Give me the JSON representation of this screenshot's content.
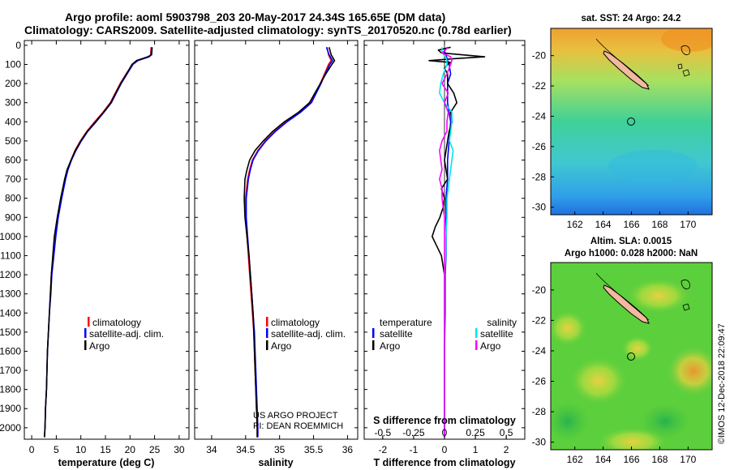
{
  "title": {
    "line1": "Argo profile: aoml 5903798_203 20-May-2017 24.34S 165.65E (DM data)",
    "line2": "Climatology: CARS2009. Satellite-adjusted climatology: synTS_20170520.nc (0.78d earlier)"
  },
  "colors": {
    "climatology": "#ff0000",
    "satellite": "#0000ff",
    "argo": "#000000",
    "sat_salinity": "#00e5ee",
    "argo_salinity": "#ff00ff",
    "land": "#f2b8a0"
  },
  "depth_ticks": [
    "0",
    "100",
    "200",
    "300",
    "400",
    "500",
    "600",
    "700",
    "800",
    "900",
    "1000",
    "1100",
    "1200",
    "1300",
    "1400",
    "1500",
    "1600",
    "1700",
    "1800",
    "1900",
    "2000"
  ],
  "chart_data": [
    {
      "type": "line",
      "panel": "temperature",
      "xlabel": "temperature (deg C)",
      "ylabel": "",
      "xlim": [
        -1.5,
        32
      ],
      "ylim": [
        2060,
        -25
      ],
      "xticks": [
        "0",
        "5",
        "10",
        "15",
        "20",
        "25",
        "30"
      ],
      "legend": {
        "placement": "middle-right",
        "entries": [
          "climatology",
          "satellite-adj. clim.",
          "Argo"
        ]
      },
      "series": [
        {
          "name": "climatology",
          "depth": [
            10,
            50,
            60,
            80,
            100,
            150,
            200,
            250,
            300,
            350,
            400,
            450,
            500,
            550,
            600,
            650,
            700,
            800,
            900,
            1000,
            1100,
            1200,
            1300,
            1400,
            1500,
            1600,
            1700,
            1800,
            1900,
            2000,
            2050
          ],
          "values": [
            24.3,
            24.2,
            23.8,
            21.5,
            20.5,
            19.2,
            18.0,
            17.0,
            16.0,
            14.5,
            12.8,
            11.2,
            9.9,
            8.8,
            8.0,
            7.3,
            6.8,
            6.0,
            5.3,
            4.8,
            4.4,
            4.0,
            3.8,
            3.6,
            3.4,
            3.2,
            3.1,
            3.0,
            2.8,
            2.7,
            2.6
          ]
        },
        {
          "name": "satellite-adj. clim.",
          "depth": [
            10,
            50,
            60,
            80,
            100,
            150,
            200,
            250,
            300,
            350,
            400,
            450,
            500,
            550,
            600,
            650,
            700,
            800,
            900,
            1000,
            1100,
            1200,
            1300,
            1400,
            1500,
            1600,
            1700,
            1800,
            1900,
            2000,
            2050
          ],
          "values": [
            24.4,
            24.3,
            23.9,
            21.6,
            20.6,
            19.4,
            18.2,
            17.2,
            16.2,
            14.7,
            13.1,
            11.4,
            10.1,
            9.0,
            8.1,
            7.4,
            6.9,
            6.1,
            5.4,
            4.9,
            4.5,
            4.1,
            3.9,
            3.6,
            3.4,
            3.2,
            3.1,
            3.0,
            2.8,
            2.7,
            2.6
          ]
        },
        {
          "name": "Argo",
          "depth": [
            10,
            50,
            60,
            80,
            100,
            150,
            200,
            250,
            300,
            350,
            400,
            450,
            500,
            550,
            600,
            650,
            700,
            800,
            900,
            1000,
            1100,
            1200,
            1300,
            1400,
            1500,
            1600,
            1700,
            1800,
            1900,
            2000,
            2050
          ],
          "values": [
            24.5,
            24.4,
            23.6,
            21.3,
            20.4,
            19.3,
            18.1,
            17.1,
            16.1,
            14.6,
            13.0,
            11.3,
            10.0,
            8.9,
            8.0,
            7.2,
            6.7,
            5.9,
            5.2,
            4.6,
            4.3,
            4.0,
            3.8,
            3.6,
            3.4,
            3.2,
            3.1,
            3.0,
            2.8,
            2.7,
            2.6
          ]
        }
      ]
    },
    {
      "type": "line",
      "panel": "salinity",
      "xlabel": "salinity",
      "ylabel": "",
      "xlim": [
        33.75,
        36.15
      ],
      "ylim": [
        2060,
        -25
      ],
      "xticks": [
        "34",
        "34.5",
        "35",
        "35.5",
        "36"
      ],
      "legend": {
        "placement": "lower-right",
        "entries": [
          "climatology",
          "satellite-adj. clim.",
          "Argo"
        ]
      },
      "series": [
        {
          "name": "climatology",
          "depth": [
            10,
            50,
            80,
            100,
            150,
            200,
            250,
            300,
            350,
            400,
            450,
            500,
            550,
            600,
            650,
            700,
            800,
            900,
            1000,
            1100,
            1200,
            1300,
            1400,
            1500,
            1600,
            1700,
            1800,
            1900,
            2000,
            2050
          ],
          "values": [
            35.7,
            35.72,
            35.76,
            35.72,
            35.66,
            35.6,
            35.53,
            35.46,
            35.3,
            35.1,
            34.93,
            34.79,
            34.68,
            34.6,
            34.56,
            34.53,
            34.5,
            34.5,
            34.52,
            34.54,
            34.56,
            34.58,
            34.6,
            34.62,
            34.63,
            34.64,
            34.65,
            34.66,
            34.67,
            34.67
          ]
        },
        {
          "name": "satellite-adj. clim.",
          "depth": [
            10,
            50,
            80,
            100,
            150,
            200,
            250,
            300,
            350,
            400,
            450,
            500,
            550,
            600,
            650,
            700,
            800,
            900,
            1000,
            1100,
            1200,
            1300,
            1400,
            1500,
            1600,
            1700,
            1800,
            1900,
            2000,
            2050
          ],
          "values": [
            35.69,
            35.73,
            35.78,
            35.74,
            35.67,
            35.61,
            35.54,
            35.47,
            35.31,
            35.11,
            34.94,
            34.8,
            34.69,
            34.61,
            34.57,
            34.54,
            34.51,
            34.51,
            34.53,
            34.55,
            34.57,
            34.59,
            34.61,
            34.63,
            34.64,
            34.65,
            34.66,
            34.67,
            34.68,
            34.68
          ]
        },
        {
          "name": "Argo",
          "depth": [
            10,
            50,
            80,
            100,
            150,
            200,
            250,
            300,
            350,
            400,
            450,
            500,
            550,
            600,
            650,
            700,
            800,
            900,
            1000,
            1100,
            1200,
            1300,
            1400,
            1500,
            1600,
            1700,
            1800,
            1900,
            2000,
            2050
          ],
          "values": [
            35.73,
            35.76,
            35.81,
            35.77,
            35.68,
            35.6,
            35.52,
            35.44,
            35.28,
            35.07,
            34.9,
            34.76,
            34.64,
            34.56,
            34.52,
            34.49,
            34.48,
            34.49,
            34.52,
            34.55,
            34.57,
            34.59,
            34.61,
            34.62,
            34.63,
            34.64,
            34.65,
            34.66,
            34.67,
            34.67
          ]
        }
      ]
    },
    {
      "type": "line",
      "panel": "difference",
      "xlabel": "T difference from climatology",
      "xlabel_top": "S difference from climatology",
      "ylabel": "",
      "xlim": [
        -2.6,
        2.6
      ],
      "ylim": [
        2060,
        -25
      ],
      "xticks": [
        "-2",
        "-1",
        "0",
        "1",
        "2"
      ],
      "xticks_top": [
        "-0.5",
        "-0.25",
        "0",
        "0.25",
        "0.5"
      ],
      "legend": {
        "placement": "lower-middle",
        "temperature_title": "temperature",
        "salinity_title": "salinity",
        "temperature_entries": [
          "satellite",
          "Argo"
        ],
        "salinity_entries": [
          "satellite",
          "Argo"
        ]
      },
      "series": [
        {
          "name": "satellite",
          "group": "temperature",
          "depth": [
            10,
            30,
            50,
            80,
            100,
            150,
            200,
            300,
            400,
            500,
            600,
            700,
            800,
            900,
            1000,
            1100,
            1200,
            1400,
            1600,
            1800,
            2000,
            2050
          ],
          "values": [
            0.1,
            0.0,
            0.05,
            0.1,
            0.15,
            0.2,
            0.1,
            0.1,
            0.2,
            0.15,
            0.1,
            0.1,
            0.05,
            0.05,
            0.05,
            0.05,
            0.02,
            0.02,
            0.0,
            0.0,
            0.0,
            0.0
          ]
        },
        {
          "name": "Argo",
          "group": "temperature",
          "depth": [
            10,
            25,
            40,
            50,
            60,
            70,
            80,
            90,
            100,
            120,
            150,
            200,
            250,
            300,
            350,
            400,
            450,
            500,
            550,
            600,
            650,
            700,
            750,
            800,
            850,
            900,
            950,
            1000,
            1050,
            1100,
            1200,
            1400,
            1600,
            1800,
            2000,
            2050
          ],
          "values": [
            0.2,
            -0.2,
            -0.1,
            0.6,
            1.3,
            0.3,
            -0.5,
            0.2,
            0.1,
            0.0,
            0.1,
            0.1,
            0.3,
            0.4,
            0.2,
            0.25,
            0.15,
            0.1,
            0.05,
            0.0,
            0.05,
            0.1,
            -0.1,
            0.0,
            -0.05,
            -0.15,
            -0.3,
            -0.4,
            -0.25,
            -0.1,
            0.0,
            0.0,
            0.0,
            0.0,
            0.0,
            0.0
          ]
        },
        {
          "name": "satellite",
          "group": "salinity",
          "depth": [
            10,
            40,
            60,
            80,
            100,
            150,
            200,
            250,
            300,
            350,
            400,
            450,
            500,
            550,
            600,
            700,
            800,
            900,
            1000,
            1100,
            1200,
            1400,
            1600,
            1800,
            2000,
            2050
          ],
          "values": [
            -0.02,
            -0.02,
            0.01,
            0.02,
            0.02,
            -0.01,
            -0.03,
            -0.04,
            0.0,
            0.06,
            0.06,
            0.05,
            0.04,
            0.07,
            0.06,
            0.04,
            0.02,
            0.02,
            0.01,
            0.01,
            0.0,
            0.0,
            0.0,
            0.0,
            0.0,
            0.0
          ]
        },
        {
          "name": "Argo",
          "group": "salinity",
          "depth": [
            10,
            40,
            60,
            80,
            100,
            150,
            200,
            250,
            300,
            350,
            400,
            450,
            500,
            550,
            600,
            650,
            700,
            750,
            800,
            850,
            900,
            1000,
            1100,
            1200,
            1400,
            1600,
            1800,
            2000,
            2050
          ],
          "values": [
            0.03,
            -0.02,
            0.05,
            0.06,
            0.05,
            0.02,
            -0.02,
            0.03,
            0.0,
            0.03,
            0.02,
            0.02,
            -0.02,
            -0.04,
            -0.03,
            -0.02,
            -0.04,
            -0.02,
            -0.02,
            -0.01,
            0.0,
            0.0,
            0.0,
            0.0,
            0.0,
            0.0,
            0.0,
            0.0,
            0.0
          ]
        }
      ]
    },
    {
      "type": "heatmap",
      "panel": "sst-map",
      "title": "sat. SST: 24 Argo: 24.2",
      "xticks": [
        "162",
        "164",
        "166",
        "168",
        "170"
      ],
      "yticks": [
        "-20",
        "-22",
        "-24",
        "-26",
        "-28",
        "-30"
      ],
      "xlim": [
        160.3,
        171.7
      ],
      "ylim": [
        -30.5,
        -18.2
      ],
      "argo_position": {
        "lon": 165.65,
        "lat": -24.34
      }
    },
    {
      "type": "heatmap",
      "panel": "sla-map",
      "title": "Altim. SLA: 0.0015",
      "subtitle": "Argo h1000: 0.028 h2000: NaN",
      "xticks": [
        "162",
        "164",
        "166",
        "168",
        "170"
      ],
      "yticks": [
        "-20",
        "-22",
        "-24",
        "-26",
        "-28",
        "-30"
      ],
      "xlim": [
        160.3,
        171.7
      ],
      "ylim": [
        -30.5,
        -18.2
      ],
      "argo_position": {
        "lon": 165.65,
        "lat": -24.34
      }
    }
  ],
  "annotations": {
    "project_line1": "US ARGO PROJECT",
    "project_line2": "PI: DEAN ROEMMICH",
    "credit": "©IMOS 12-Dec-2018 22:09:47"
  },
  "legend_labels": {
    "climatology": "climatology",
    "satellite_adj": "satellite-adj. clim.",
    "argo": "Argo",
    "temperature": "temperature",
    "salinity": "salinity",
    "satellite": "satellite"
  }
}
